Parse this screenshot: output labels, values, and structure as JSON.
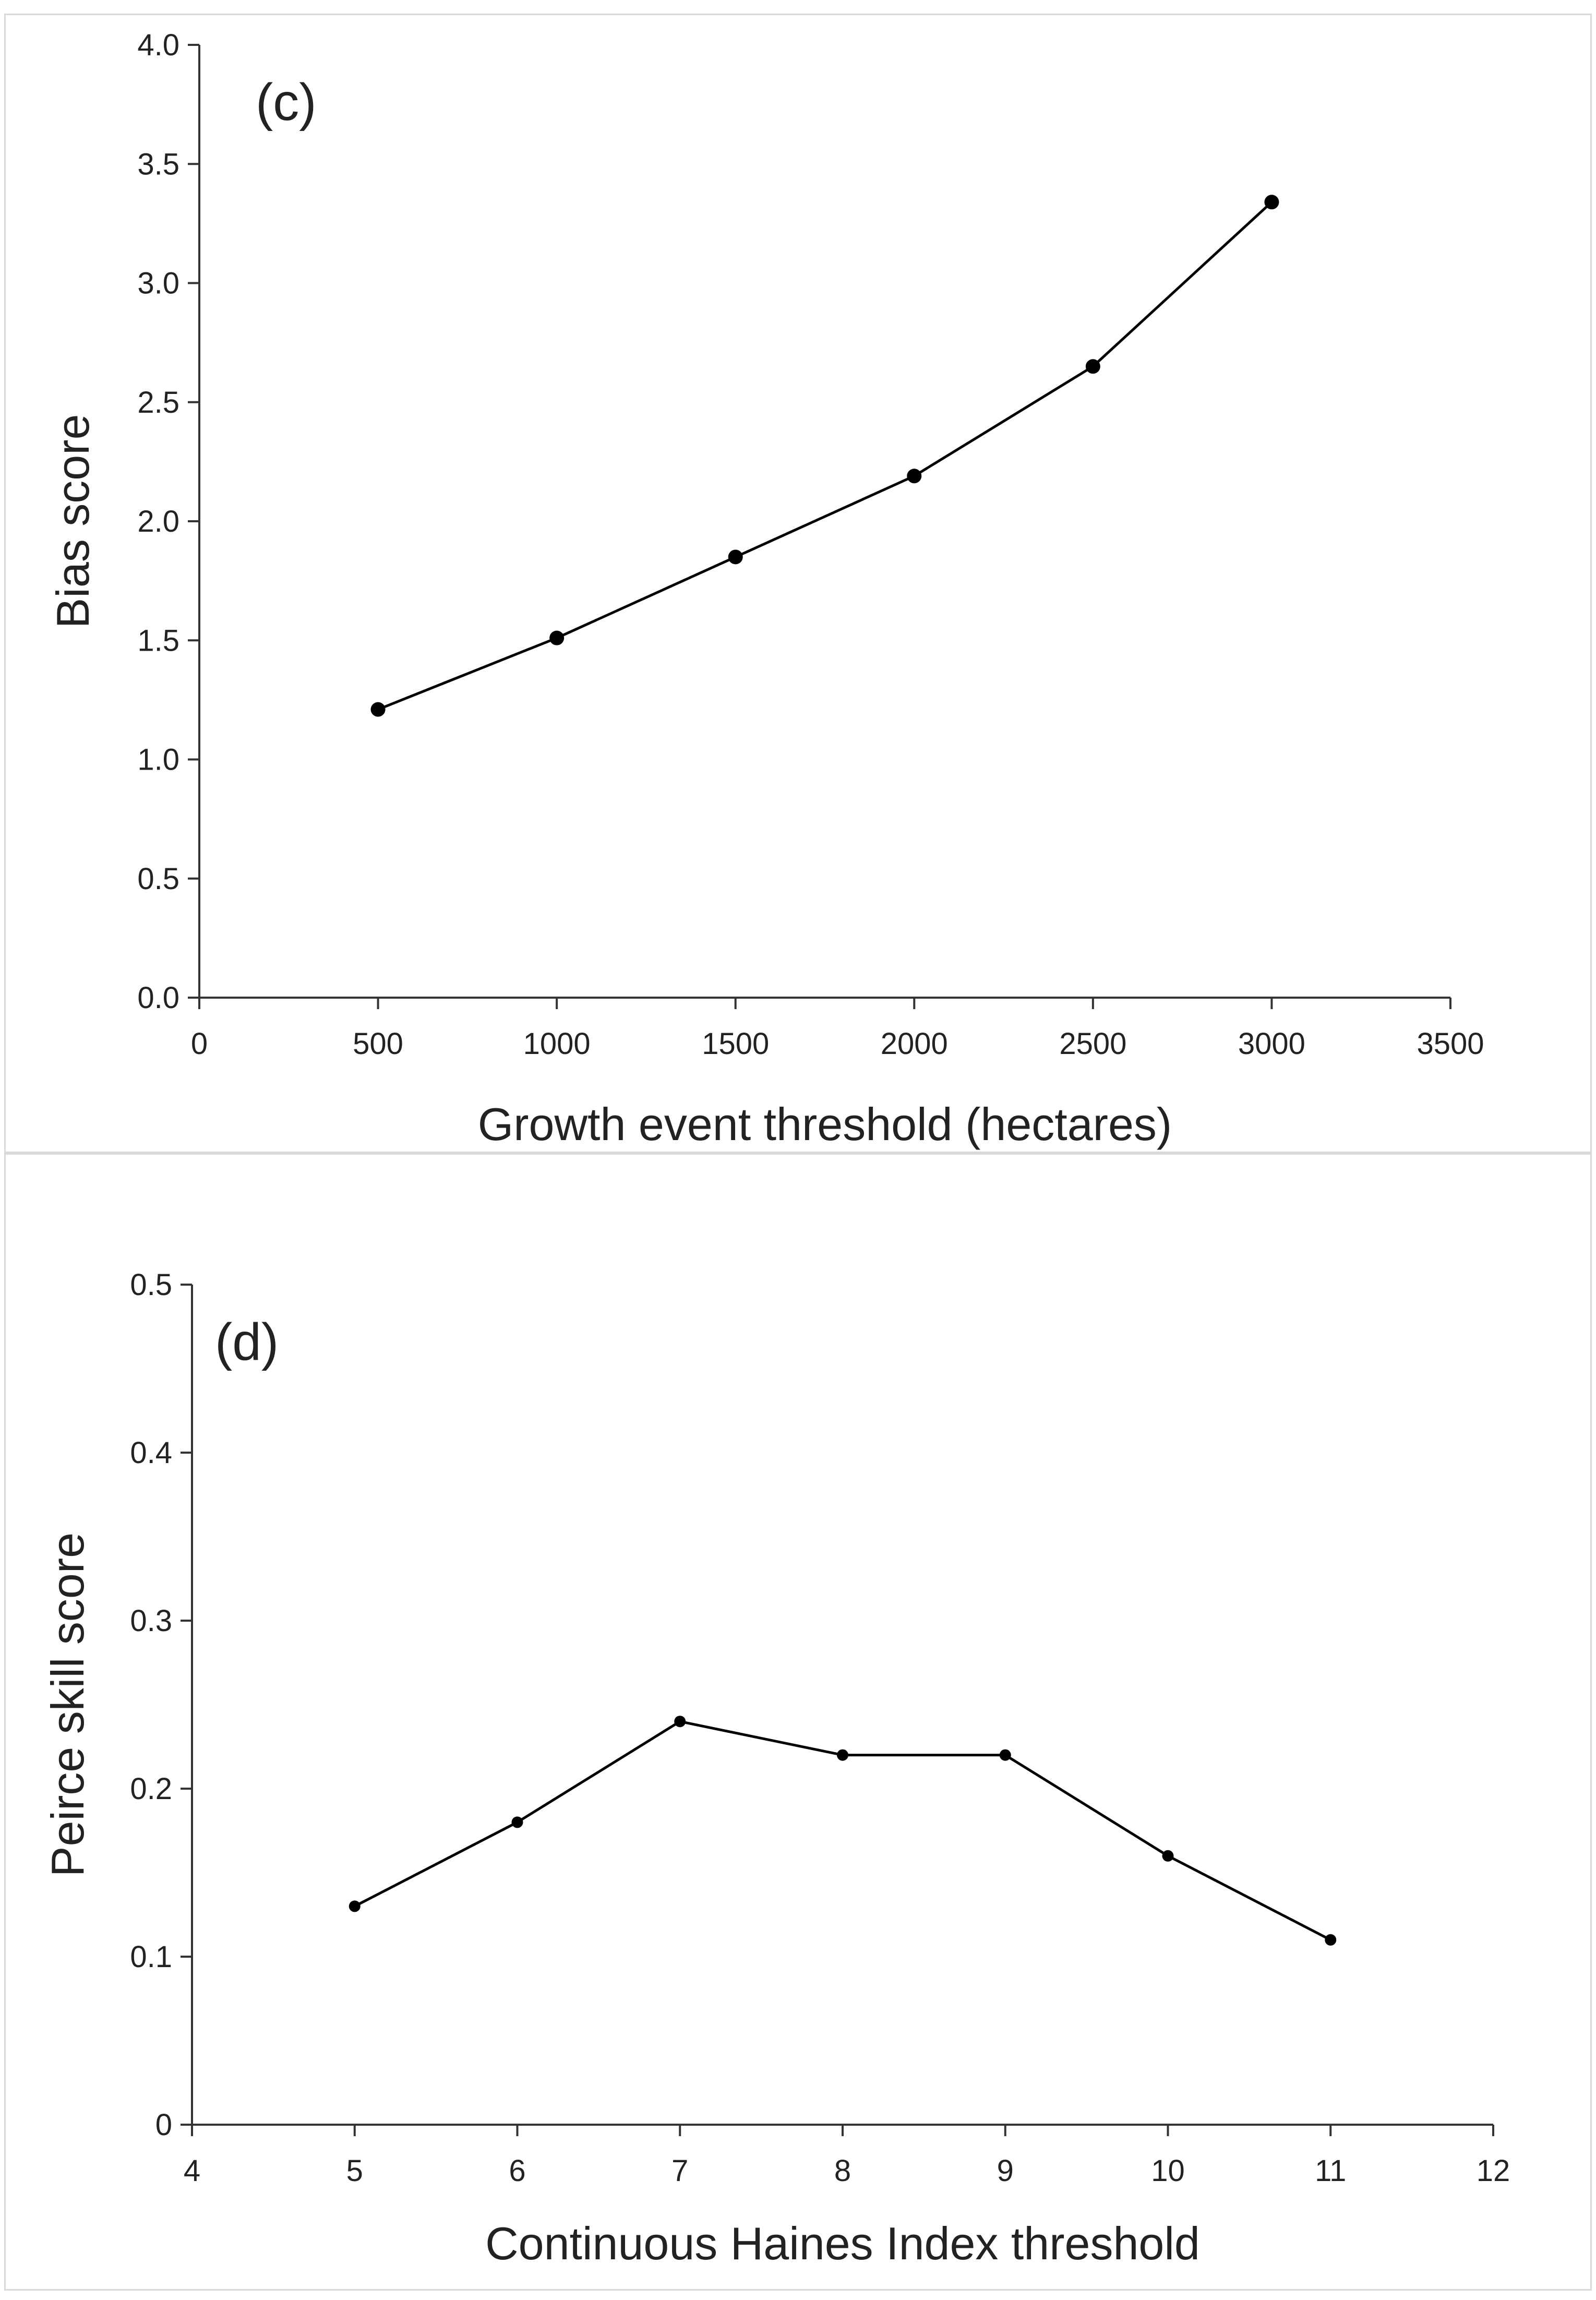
{
  "chart_data": [
    {
      "type": "line",
      "panel_label": "(c)",
      "xlabel": "Growth event threshold (hectares)",
      "ylabel": "Bias score",
      "xlim": [
        0,
        3500
      ],
      "ylim": [
        0.0,
        4.0
      ],
      "xticks": [
        "0",
        "500",
        "1000",
        "1500",
        "2000",
        "2500",
        "3000",
        "3500"
      ],
      "yticks": [
        "0.0",
        "0.5",
        "1.0",
        "1.5",
        "2.0",
        "2.5",
        "3.0",
        "3.5",
        "4.0"
      ],
      "series": [
        {
          "name": "Bias score",
          "x": [
            500,
            1000,
            1500,
            2000,
            2500,
            3000
          ],
          "y": [
            1.21,
            1.51,
            1.85,
            2.19,
            2.65,
            3.34
          ]
        }
      ],
      "grid": false,
      "colors": {
        "line": "#000000",
        "marker": "#000000"
      }
    },
    {
      "type": "line",
      "panel_label": "(d)",
      "xlabel": "Continuous Haines Index threshold",
      "ylabel": "Peirce skill score",
      "xlim": [
        4,
        12
      ],
      "ylim": [
        0,
        0.5
      ],
      "xticks": [
        "4",
        "5",
        "6",
        "7",
        "8",
        "9",
        "10",
        "11",
        "12"
      ],
      "yticks": [
        "0",
        "0.1",
        "0.2",
        "0.3",
        "0.4",
        "0.5"
      ],
      "series": [
        {
          "name": "Peirce skill score",
          "x": [
            5,
            6,
            7,
            8,
            9,
            10,
            11
          ],
          "y": [
            0.13,
            0.18,
            0.24,
            0.22,
            0.22,
            0.16,
            0.11
          ]
        }
      ],
      "grid": false,
      "colors": {
        "line": "#000000",
        "marker": "#000000"
      }
    }
  ]
}
